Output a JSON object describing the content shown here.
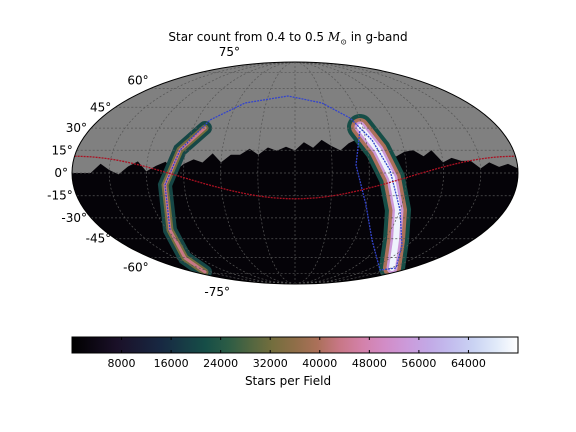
{
  "chart_data": {
    "type": "heatmap",
    "projection": "mollweide (equatorial sky map)",
    "title_prefix": "Star count from 0.4 to 0.5",
    "title_math": "M",
    "title_sub": "⊙",
    "title_suffix": "in g-band",
    "lat_tick_labels": [
      "75°",
      "60°",
      "45°",
      "30°",
      "15°",
      "0°",
      "-15°",
      "-30°",
      "-45°",
      "-60°",
      "-75°"
    ],
    "lat_tick_values": [
      75,
      60,
      45,
      30,
      15,
      0,
      -15,
      -30,
      -45,
      -60,
      -75
    ],
    "grid": true,
    "masked_region_color": "#808080",
    "colormap": "cubehelix",
    "colorbar": {
      "label": "Stars per Field",
      "tick_labels": [
        "8000",
        "16000",
        "24000",
        "32000",
        "40000",
        "48000",
        "56000",
        "64000"
      ],
      "tick_values": [
        8000,
        16000,
        24000,
        32000,
        40000,
        48000,
        56000,
        64000
      ],
      "range": [
        0,
        72000
      ],
      "orientation": "horizontal"
    },
    "overlays": [
      {
        "name": "galactic-plane-band",
        "description_color": "#3344cc"
      },
      {
        "name": "ecliptic-line",
        "description_color": "#aa1122"
      }
    ],
    "observations": {
      "peak_stars_per_field": 70000,
      "background_stars_per_field": 1500
    }
  }
}
